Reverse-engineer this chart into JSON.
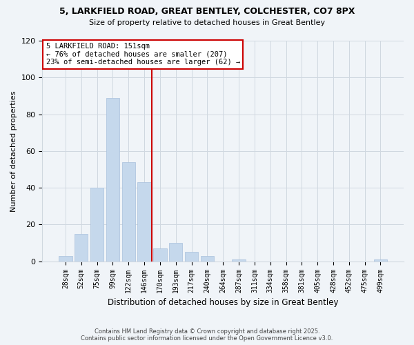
{
  "title_line1": "5, LARKFIELD ROAD, GREAT BENTLEY, COLCHESTER, CO7 8PX",
  "title_line2": "Size of property relative to detached houses in Great Bentley",
  "xlabel": "Distribution of detached houses by size in Great Bentley",
  "ylabel": "Number of detached properties",
  "annotation_line1": "5 LARKFIELD ROAD: 151sqm",
  "annotation_line2": "← 76% of detached houses are smaller (207)",
  "annotation_line3": "23% of semi-detached houses are larger (62) →",
  "categories": [
    "28sqm",
    "52sqm",
    "75sqm",
    "99sqm",
    "122sqm",
    "146sqm",
    "170sqm",
    "193sqm",
    "217sqm",
    "240sqm",
    "264sqm",
    "287sqm",
    "311sqm",
    "334sqm",
    "358sqm",
    "381sqm",
    "405sqm",
    "428sqm",
    "452sqm",
    "475sqm",
    "499sqm"
  ],
  "values": [
    3,
    15,
    40,
    89,
    54,
    43,
    7,
    10,
    5,
    3,
    0,
    1,
    0,
    0,
    0,
    0,
    0,
    0,
    0,
    0,
    1
  ],
  "bar_color": "#c5d8ec",
  "bar_edge_color": "#a8c0dc",
  "property_line_color": "#cc0000",
  "annotation_box_color": "#cc0000",
  "background_color": "#f0f4f8",
  "grid_color": "#d0d8e0",
  "footer_line1": "Contains HM Land Registry data © Crown copyright and database right 2025.",
  "footer_line2": "Contains public sector information licensed under the Open Government Licence v3.0.",
  "ylim": [
    0,
    120
  ],
  "yticks": [
    0,
    20,
    40,
    60,
    80,
    100,
    120
  ],
  "property_line_index": 5.5
}
